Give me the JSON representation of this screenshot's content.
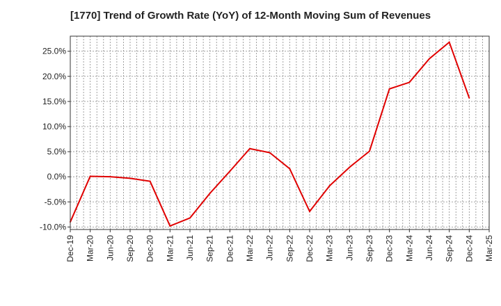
{
  "chart_data": {
    "type": "line",
    "title": "[1770]  Trend of Growth Rate (YoY) of 12-Month Moving Sum of Revenues",
    "xlabel": "",
    "ylabel": "",
    "ylim": [
      -10.5,
      28.0
    ],
    "yticks": [
      -10.0,
      -5.0,
      0.0,
      5.0,
      10.0,
      15.0,
      20.0,
      25.0
    ],
    "ytick_labels": [
      "-10.0%",
      "-5.0%",
      "0.0%",
      "5.0%",
      "10.0%",
      "15.0%",
      "20.0%",
      "25.0%"
    ],
    "x_tick_labels": [
      "Dec-19",
      "Mar-20",
      "Jun-20",
      "Sep-20",
      "Dec-20",
      "Mar-21",
      "Jun-21",
      "Sep-21",
      "Dec-21",
      "Mar-22",
      "Jun-22",
      "Sep-22",
      "Dec-22",
      "Mar-23",
      "Jun-23",
      "Sep-23",
      "Dec-23",
      "Mar-24",
      "Jun-24",
      "Sep-24",
      "Dec-24",
      "Mar-25"
    ],
    "grid": true,
    "series": [
      {
        "color": "#e00000",
        "x": [
          "Dec-19",
          "Mar-20",
          "Jun-20",
          "Sep-20",
          "Dec-20",
          "Mar-21",
          "Jun-21",
          "Sep-21",
          "Dec-21",
          "Mar-22",
          "Jun-22",
          "Sep-22",
          "Dec-22",
          "Mar-23",
          "Jun-23",
          "Sep-23",
          "Dec-23",
          "Mar-24",
          "Jun-24",
          "Sep-24",
          "Dec-24"
        ],
        "values": [
          -9.0,
          0.1,
          0.0,
          -0.3,
          -0.9,
          -9.8,
          -8.2,
          -3.3,
          1.1,
          5.6,
          4.8,
          1.6,
          -6.9,
          -1.8,
          1.9,
          5.1,
          17.5,
          18.8,
          23.5,
          26.8,
          15.7
        ]
      }
    ]
  }
}
